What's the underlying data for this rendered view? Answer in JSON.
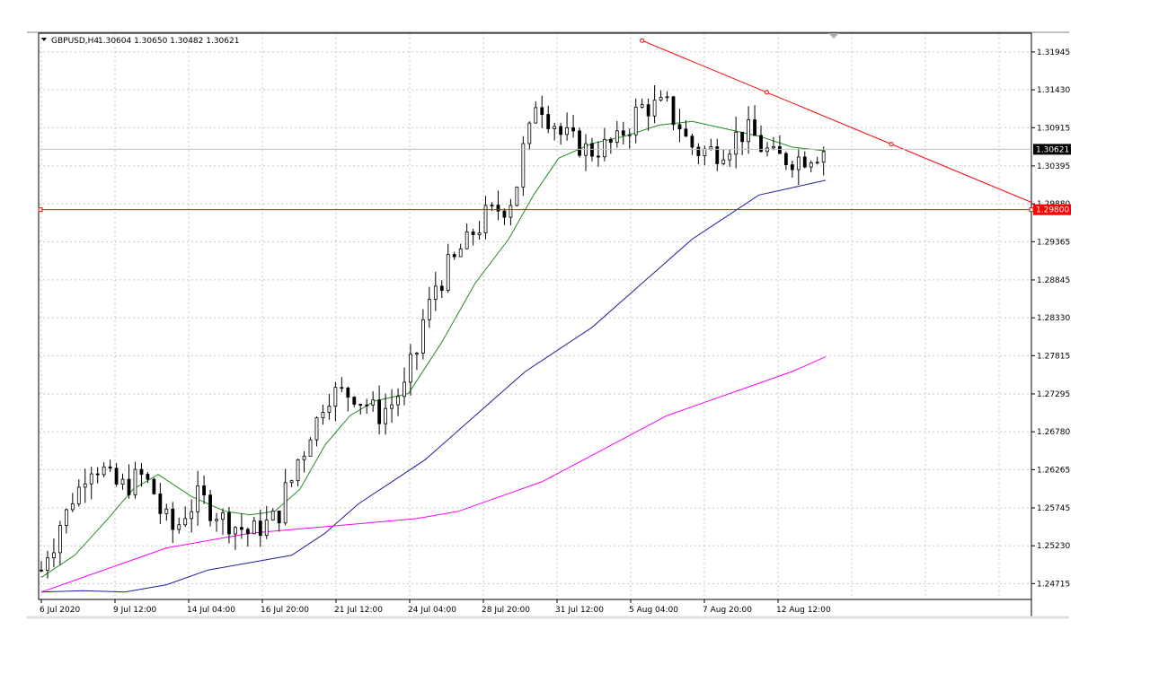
{
  "header": {
    "symbol_label": "GBPUSD,H4",
    "ohlc_label": "1.30604 1.30650 1.30482 1.30621",
    "dropdown_icon": "triangle-down-icon"
  },
  "colors": {
    "bull_body": "#ffffff",
    "bear_body": "#000000",
    "candle_outline": "#000000",
    "grid": "#c8c8c8",
    "ma_short": "#228b22",
    "ma_mid": "#1e1e9c",
    "ma_long": "#ff00ff",
    "support_line": "#ff0000",
    "trendline": "#ff0000",
    "current_price_bg": "#000000",
    "level_label_bg": "#ff0000"
  },
  "chart_data": {
    "type": "candlestick",
    "title": "GBPUSD,H4",
    "ylim": [
      1.245,
      1.322
    ],
    "y_ticks": [
      "1.31945",
      "1.31430",
      "1.30915",
      "1.30395",
      "1.29880",
      "1.29365",
      "1.28845",
      "1.28330",
      "1.27815",
      "1.27295",
      "1.26780",
      "1.26265",
      "1.25745",
      "1.25230",
      "1.24715"
    ],
    "x_ticks": [
      "6 Jul 2020",
      "9 Jul 12:00",
      "14 Jul 04:00",
      "16 Jul 20:00",
      "21 Jul 12:00",
      "24 Jul 04:00",
      "28 Jul 20:00",
      "31 Jul 12:00",
      "5 Aug 04:00",
      "7 Aug 20:00",
      "12 Aug 12:00"
    ],
    "grid": true,
    "current_price": 1.30621,
    "current_price_label": "1.30621",
    "horizontal_level": 1.298,
    "horizontal_level_label": "1.29800",
    "anchors": [
      {
        "date": "6 Jul 2020",
        "price": 1.249
      },
      {
        "date": "8 Jul",
        "price": 1.257
      },
      {
        "date": "9 Jul 12:00",
        "price": 1.264
      },
      {
        "date": "10 Jul",
        "price": 1.26
      },
      {
        "date": "13 Jul",
        "price": 1.262
      },
      {
        "date": "14 Jul 04:00",
        "price": 1.254
      },
      {
        "date": "15 Jul",
        "price": 1.259
      },
      {
        "date": "16 Jul",
        "price": 1.256
      },
      {
        "date": "16 Jul 20:00",
        "price": 1.254
      },
      {
        "date": "17 Jul",
        "price": 1.256
      },
      {
        "date": "20 Jul",
        "price": 1.265
      },
      {
        "date": "21 Jul 12:00",
        "price": 1.273
      },
      {
        "date": "22 Jul",
        "price": 1.273
      },
      {
        "date": "23 Jul",
        "price": 1.27
      },
      {
        "date": "24 Jul 04:00",
        "price": 1.274
      },
      {
        "date": "27 Jul",
        "price": 1.287
      },
      {
        "date": "28 Jul",
        "price": 1.292
      },
      {
        "date": "28 Jul 20:00",
        "price": 1.297
      },
      {
        "date": "29 Jul",
        "price": 1.299
      },
      {
        "date": "30 Jul",
        "price": 1.313
      },
      {
        "date": "31 Jul 12:00",
        "price": 1.308
      },
      {
        "date": "3 Aug",
        "price": 1.306
      },
      {
        "date": "4 Aug",
        "price": 1.307
      },
      {
        "date": "5 Aug 04:00",
        "price": 1.312
      },
      {
        "date": "6 Aug",
        "price": 1.312
      },
      {
        "date": "7 Aug",
        "price": 1.306
      },
      {
        "date": "7 Aug 20:00",
        "price": 1.306
      },
      {
        "date": "10 Aug",
        "price": 1.309
      },
      {
        "date": "11 Aug",
        "price": 1.305
      },
      {
        "date": "12 Aug 12:00",
        "price": 1.305
      },
      {
        "date": "13 Aug",
        "price": 1.3062
      }
    ],
    "series": [
      {
        "values": [
          [
            0,
            1.248
          ],
          [
            8,
            1.251
          ],
          [
            16,
            1.256
          ],
          [
            22,
            1.26
          ],
          [
            28,
            1.262
          ],
          [
            36,
            1.259
          ],
          [
            44,
            1.257
          ],
          [
            50,
            1.2565
          ],
          [
            56,
            1.257
          ],
          [
            62,
            1.26
          ],
          [
            68,
            1.266
          ],
          [
            74,
            1.27
          ],
          [
            80,
            1.272
          ],
          [
            88,
            1.273
          ],
          [
            96,
            1.28
          ],
          [
            104,
            1.288
          ],
          [
            112,
            1.294
          ],
          [
            118,
            1.3
          ],
          [
            124,
            1.305
          ],
          [
            132,
            1.307
          ],
          [
            140,
            1.308
          ],
          [
            148,
            1.3095
          ],
          [
            156,
            1.31
          ],
          [
            164,
            1.309
          ],
          [
            172,
            1.308
          ],
          [
            180,
            1.3065
          ],
          [
            188,
            1.306
          ]
        ]
      },
      {
        "values": [
          [
            0,
            1.246
          ],
          [
            10,
            1.2462
          ],
          [
            20,
            1.246
          ],
          [
            30,
            1.247
          ],
          [
            40,
            1.249
          ],
          [
            50,
            1.25
          ],
          [
            60,
            1.251
          ],
          [
            68,
            1.254
          ],
          [
            76,
            1.258
          ],
          [
            84,
            1.261
          ],
          [
            92,
            1.264
          ],
          [
            100,
            1.268
          ],
          [
            108,
            1.272
          ],
          [
            116,
            1.276
          ],
          [
            124,
            1.279
          ],
          [
            132,
            1.282
          ],
          [
            140,
            1.286
          ],
          [
            148,
            1.29
          ],
          [
            156,
            1.294
          ],
          [
            164,
            1.297
          ],
          [
            172,
            1.3
          ],
          [
            180,
            1.301
          ],
          [
            188,
            1.302
          ]
        ]
      },
      {
        "values": [
          [
            0,
            1.246
          ],
          [
            10,
            1.248
          ],
          [
            20,
            1.25
          ],
          [
            30,
            1.252
          ],
          [
            40,
            1.253
          ],
          [
            50,
            1.254
          ],
          [
            60,
            1.2545
          ],
          [
            70,
            1.255
          ],
          [
            80,
            1.2555
          ],
          [
            90,
            1.256
          ],
          [
            100,
            1.257
          ],
          [
            110,
            1.259
          ],
          [
            120,
            1.261
          ],
          [
            130,
            1.264
          ],
          [
            140,
            1.267
          ],
          [
            150,
            1.27
          ],
          [
            160,
            1.272
          ],
          [
            170,
            1.274
          ],
          [
            180,
            1.276
          ],
          [
            188,
            1.278
          ]
        ]
      }
    ],
    "trendline": {
      "points": [
        [
          144,
          1.321
        ],
        [
          240,
          1.299
        ]
      ]
    }
  }
}
